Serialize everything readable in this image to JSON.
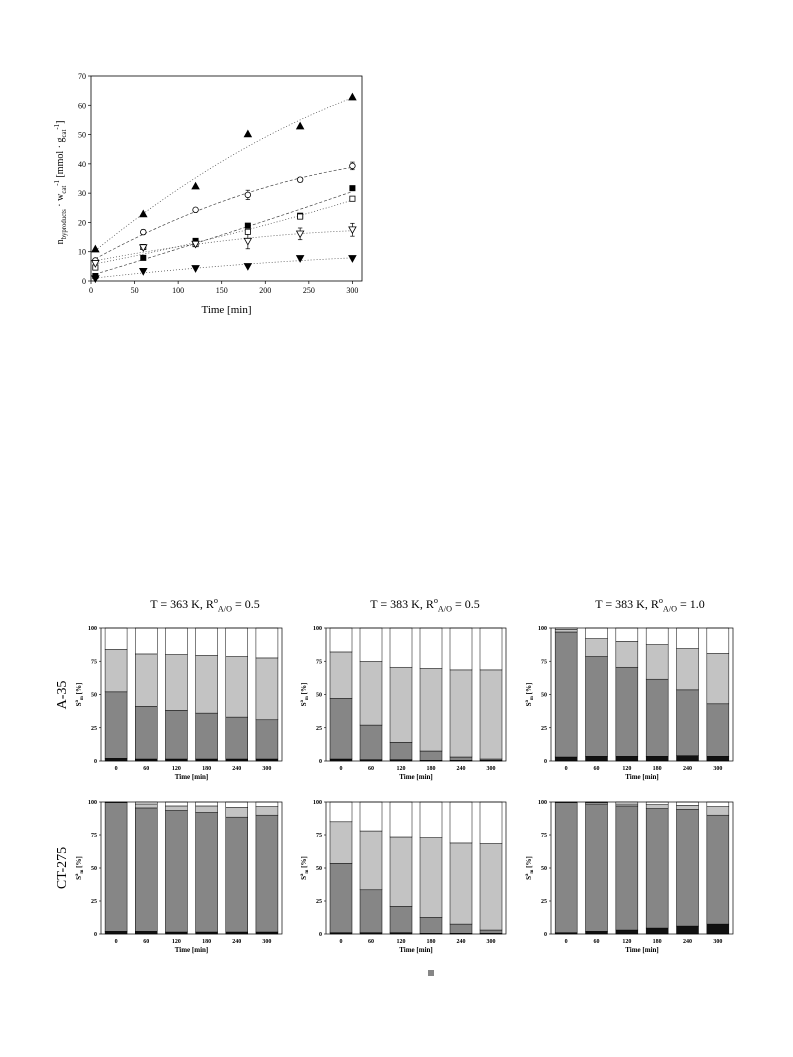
{
  "chart_data": [
    {
      "type": "scatter",
      "xlabel": "Time [min]",
      "ylabel": [
        {
          "t": "n"
        },
        {
          "t": "byproducts",
          "style": "sub"
        },
        {
          "t": " · w"
        },
        {
          "t": "cat",
          "style": "sub"
        },
        {
          "t": "-1",
          "style": "sup"
        },
        {
          "t": " [mmol · g"
        },
        {
          "t": "cat",
          "style": "sub"
        },
        {
          "t": "-1",
          "style": "sup"
        },
        {
          "t": "]"
        }
      ],
      "xlim": [
        0,
        311
      ],
      "ylim": [
        0,
        70
      ],
      "xticks": [
        "0",
        "50",
        "100",
        "150",
        "200",
        "250",
        "300"
      ],
      "yticks": [
        "0",
        "10",
        "20",
        "30",
        "40",
        "50",
        "60",
        "70"
      ],
      "grid": false,
      "series": [
        {
          "marker": "filled-triangle-up",
          "line": "dotted",
          "x": [
            5,
            60,
            120,
            180,
            240,
            300
          ],
          "y": [
            10.9,
            22.9,
            32.4,
            50.2,
            52.9,
            62.8
          ]
        },
        {
          "marker": "open-circle",
          "line": "dashed",
          "x": [
            5,
            60,
            120,
            180,
            240,
            300
          ],
          "y": [
            7.0,
            16.7,
            24.3,
            29.4,
            34.6,
            39.3
          ],
          "yerr": [
            0.6,
            0.8,
            0.6,
            1.6,
            0.8,
            1.3
          ]
        },
        {
          "marker": "filled-square",
          "line": "dashed",
          "x": [
            5,
            60,
            120,
            180,
            240,
            300
          ],
          "y": [
            1.7,
            7.9,
            13.7,
            18.9,
            22.3,
            31.7
          ]
        },
        {
          "marker": "open-square",
          "line": "dotted",
          "x": [
            5,
            60,
            120,
            180,
            240,
            300
          ],
          "y": [
            4.6,
            11.6,
            12.6,
            16.8,
            22.0,
            28.1
          ]
        },
        {
          "marker": "open-triangle-down",
          "line": "dotted",
          "x": [
            5,
            60,
            120,
            180,
            240,
            300
          ],
          "y": [
            6.0,
            11.4,
            12.6,
            13.6,
            16.1,
            17.5
          ],
          "yerr": [
            0.5,
            0.6,
            0.8,
            2.6,
            2.0,
            2.2
          ]
        },
        {
          "marker": "filled-triangle-down",
          "line": "dotted",
          "x": [
            5,
            60,
            120,
            180,
            240,
            300
          ],
          "y": [
            0.8,
            3.3,
            4.3,
            5.0,
            7.7,
            7.7
          ]
        }
      ]
    },
    {
      "type": "bar",
      "stacked": true,
      "categories": [
        "0",
        "60",
        "120",
        "180",
        "240",
        "300"
      ],
      "xlabel": "Time [min]",
      "ylabel": [
        {
          "t": "S"
        },
        {
          "t": "a",
          "style": "sup"
        },
        {
          "t": "m",
          "style": "sub"
        },
        {
          "t": " [%]"
        }
      ],
      "ylim": [
        0,
        100
      ],
      "yticks": [
        "0",
        "25",
        "50",
        "75",
        "100"
      ],
      "series": [
        {
          "color": "#111111",
          "values": [
            2,
            1.5,
            1.5,
            1.5,
            1.5,
            1.5
          ]
        },
        {
          "color": "#868686",
          "values": [
            50,
            39.5,
            36.5,
            34.5,
            31.5,
            29.5
          ]
        },
        {
          "color": "#c3c3c3",
          "values": [
            32,
            39.5,
            42,
            43.5,
            45.5,
            46.5
          ]
        },
        {
          "color": "#ffffff",
          "values": [
            16,
            19.5,
            20,
            20.5,
            21.5,
            22.5
          ]
        }
      ]
    },
    {
      "type": "bar",
      "stacked": true,
      "categories": [
        "0",
        "60",
        "120",
        "180",
        "240",
        "300"
      ],
      "xlabel": "Time [min]",
      "ylabel": [
        {
          "t": "S"
        },
        {
          "t": "a",
          "style": "sup"
        },
        {
          "t": "m",
          "style": "sub"
        },
        {
          "t": " [%]"
        }
      ],
      "ylim": [
        0,
        100
      ],
      "yticks": [
        "0",
        "25",
        "50",
        "75",
        "100"
      ],
      "series": [
        {
          "color": "#111111",
          "values": [
            1.5,
            1,
            1,
            0.5,
            0.5,
            0.5
          ]
        },
        {
          "color": "#868686",
          "values": [
            45.5,
            26,
            13,
            7,
            2.5,
            1
          ]
        },
        {
          "color": "#c3c3c3",
          "values": [
            35,
            48,
            56.5,
            62,
            65.5,
            67
          ]
        },
        {
          "color": "#ffffff",
          "values": [
            18,
            25,
            29.5,
            30.5,
            31.5,
            31.5
          ]
        }
      ]
    },
    {
      "type": "bar",
      "stacked": true,
      "categories": [
        "0",
        "60",
        "120",
        "180",
        "240",
        "300"
      ],
      "xlabel": "Time [min]",
      "ylabel": [
        {
          "t": "S"
        },
        {
          "t": "a",
          "style": "sup"
        },
        {
          "t": "m",
          "style": "sub"
        },
        {
          "t": " [%]"
        }
      ],
      "ylim": [
        0,
        100
      ],
      "yticks": [
        "0",
        "25",
        "50",
        "75",
        "100"
      ],
      "series": [
        {
          "color": "#111111",
          "values": [
            3,
            3.5,
            3.5,
            3.5,
            4,
            3.5
          ]
        },
        {
          "color": "#868686",
          "values": [
            94,
            75,
            67,
            58,
            49.5,
            39.5
          ]
        },
        {
          "color": "#c3c3c3",
          "values": [
            2,
            13.5,
            19.5,
            26,
            31,
            38
          ]
        },
        {
          "color": "#ffffff",
          "values": [
            1,
            8,
            10,
            12.5,
            15.5,
            19
          ]
        }
      ]
    },
    {
      "type": "bar",
      "stacked": true,
      "categories": [
        "0",
        "60",
        "120",
        "180",
        "240",
        "300"
      ],
      "xlabel": "Time [min]",
      "ylabel": [
        {
          "t": "S"
        },
        {
          "t": "a",
          "style": "sup"
        },
        {
          "t": "m",
          "style": "sub"
        },
        {
          "t": " [%]"
        }
      ],
      "ylim": [
        0,
        100
      ],
      "yticks": [
        "0",
        "25",
        "50",
        "75",
        "100"
      ],
      "series": [
        {
          "color": "#111111",
          "values": [
            2,
            2,
            1.5,
            1.5,
            1.5,
            1.5
          ]
        },
        {
          "color": "#868686",
          "values": [
            97.5,
            93.5,
            92,
            90.5,
            87,
            88.5
          ]
        },
        {
          "color": "#c3c3c3",
          "values": [
            0.5,
            3,
            3.5,
            5,
            7.5,
            6.5
          ]
        },
        {
          "color": "#ffffff",
          "values": [
            0,
            1.5,
            3,
            3,
            4,
            3.5
          ]
        }
      ]
    },
    {
      "type": "bar",
      "stacked": true,
      "categories": [
        "0",
        "60",
        "120",
        "180",
        "240",
        "300"
      ],
      "xlabel": "Time [min]",
      "ylabel": [
        {
          "t": "S"
        },
        {
          "t": "a",
          "style": "sup"
        },
        {
          "t": "m",
          "style": "sub"
        },
        {
          "t": " [%]"
        }
      ],
      "ylim": [
        0,
        100
      ],
      "yticks": [
        "0",
        "25",
        "50",
        "75",
        "100"
      ],
      "series": [
        {
          "color": "#111111",
          "values": [
            1,
            1,
            1,
            0.5,
            0.5,
            0.5
          ]
        },
        {
          "color": "#868686",
          "values": [
            52.5,
            32.5,
            20,
            12,
            7,
            2.5
          ]
        },
        {
          "color": "#c3c3c3",
          "values": [
            31.5,
            44.5,
            52.5,
            60.5,
            61.5,
            65.5
          ]
        },
        {
          "color": "#ffffff",
          "values": [
            15,
            22,
            26.5,
            27,
            31,
            31.5
          ]
        }
      ]
    },
    {
      "type": "bar",
      "stacked": true,
      "categories": [
        "0",
        "60",
        "120",
        "180",
        "240",
        "300"
      ],
      "xlabel": "Time [min]",
      "ylabel": [
        {
          "t": "S"
        },
        {
          "t": "a",
          "style": "sup"
        },
        {
          "t": "m",
          "style": "sub"
        },
        {
          "t": " [%]"
        }
      ],
      "ylim": [
        0,
        100
      ],
      "yticks": [
        "0",
        "25",
        "50",
        "75",
        "100"
      ],
      "series": [
        {
          "color": "#111111",
          "values": [
            1,
            2,
            3,
            4.5,
            6,
            7.5
          ]
        },
        {
          "color": "#868686",
          "values": [
            98.5,
            96.5,
            94,
            90.5,
            88.5,
            82.5
          ]
        },
        {
          "color": "#c3c3c3",
          "values": [
            0.5,
            1,
            1.5,
            3,
            3,
            6.5
          ]
        },
        {
          "color": "#ffffff",
          "values": [
            0,
            0.5,
            1.5,
            2,
            2.5,
            3.5
          ]
        }
      ]
    }
  ],
  "figure": {
    "column_headers": [
      [
        {
          "t": "T = 363 K, R"
        },
        {
          "t": "o",
          "style": "sup"
        },
        {
          "t": "A/O",
          "style": "sub"
        },
        {
          "t": " = 0.5"
        }
      ],
      [
        {
          "t": "T = 383 K, R"
        },
        {
          "t": "o",
          "style": "sup"
        },
        {
          "t": "A/O",
          "style": "sub"
        },
        {
          "t": " = 0.5"
        }
      ],
      [
        {
          "t": "T = 383 K, R"
        },
        {
          "t": "o",
          "style": "sup"
        },
        {
          "t": "A/O",
          "style": "sub"
        },
        {
          "t": " = 1.0"
        }
      ]
    ],
    "row_labels": [
      "A-35",
      "CT-275"
    ],
    "legend_marker_color": "#868686"
  }
}
